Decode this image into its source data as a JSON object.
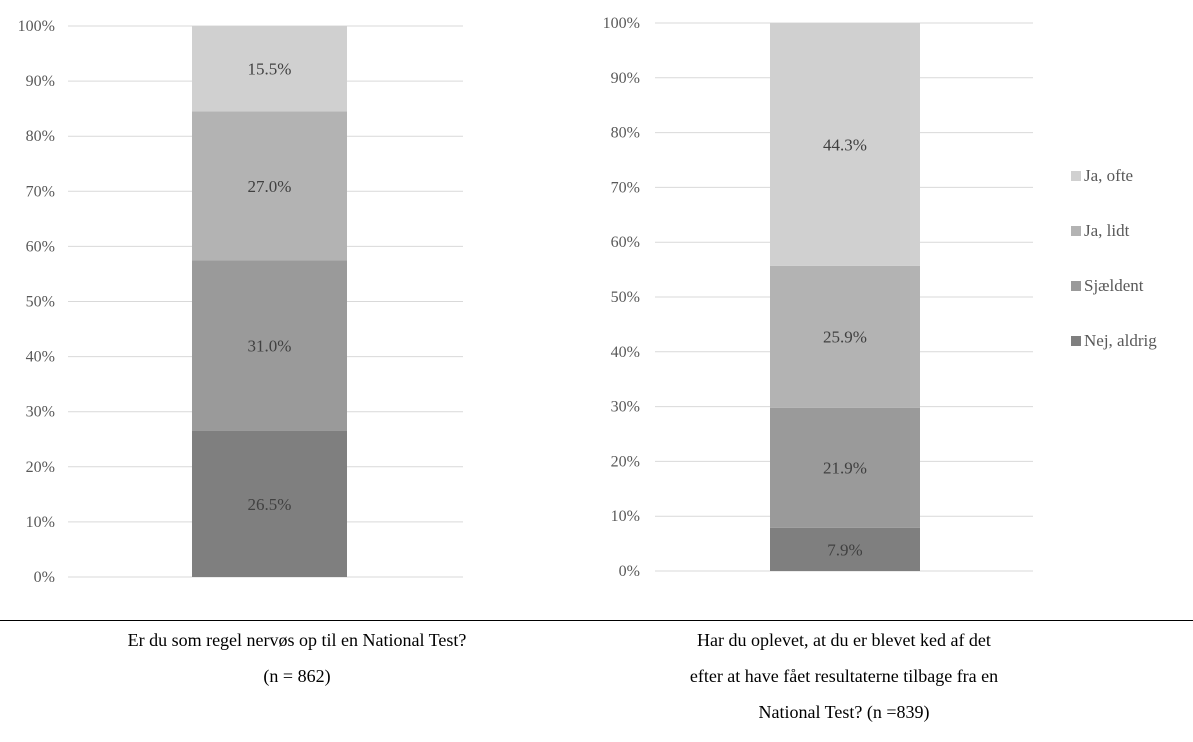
{
  "chart_data": [
    {
      "type": "bar",
      "stacked": true,
      "categories": [
        "Er du som regel nervøs op til en National Test? (n = 862)"
      ],
      "series": [
        {
          "name": "Nej, aldrig",
          "values": [
            26.5
          ],
          "label": "26.5%"
        },
        {
          "name": "Sjældent",
          "values": [
            31.0
          ],
          "label": "31.0%"
        },
        {
          "name": "Ja, lidt",
          "values": [
            27.0
          ],
          "label": "27.0%"
        },
        {
          "name": "Ja, ofte",
          "values": [
            15.5
          ],
          "label": "15.5%"
        }
      ],
      "ylim": [
        0,
        100
      ],
      "yticks": [
        "0%",
        "10%",
        "20%",
        "30%",
        "40%",
        "50%",
        "60%",
        "70%",
        "80%",
        "90%",
        "100%"
      ],
      "grid": true,
      "caption_lines": [
        "Er du som regel nervøs op til en National Test?",
        "(n = 862)"
      ]
    },
    {
      "type": "bar",
      "stacked": true,
      "categories": [
        "Har du oplevet, at du er blevet ked af det efter at have fået resultaterne tilbage fra en National Test? (n =839)"
      ],
      "series": [
        {
          "name": "Nej, aldrig",
          "values": [
            7.9
          ],
          "label": "7.9%"
        },
        {
          "name": "Sjældent",
          "values": [
            21.9
          ],
          "label": "21.9%"
        },
        {
          "name": "Ja, lidt",
          "values": [
            25.9
          ],
          "label": "25.9%"
        },
        {
          "name": "Ja, ofte",
          "values": [
            44.3
          ],
          "label": "44.3%"
        }
      ],
      "ylim": [
        0,
        100
      ],
      "yticks": [
        "0%",
        "10%",
        "20%",
        "30%",
        "40%",
        "50%",
        "60%",
        "70%",
        "80%",
        "90%",
        "100%"
      ],
      "grid": true,
      "legend_position": "right",
      "caption_lines": [
        "Har du oplevet, at du er blevet ked af det",
        "efter at have fået resultaterne tilbage fra en",
        "National Test? (n =839)"
      ]
    }
  ],
  "legend": [
    {
      "name": "Ja, ofte",
      "color": "#d0d0d0"
    },
    {
      "name": "Ja, lidt",
      "color": "#b3b3b3"
    },
    {
      "name": "Sjældent",
      "color": "#9a9a9a"
    },
    {
      "name": "Nej, aldrig",
      "color": "#7f7f7f"
    }
  ],
  "series_colors": {
    "Nej, aldrig": "#7f7f7f",
    "Sjældent": "#9a9a9a",
    "Ja, lidt": "#b3b3b3",
    "Ja, ofte": "#d0d0d0"
  }
}
